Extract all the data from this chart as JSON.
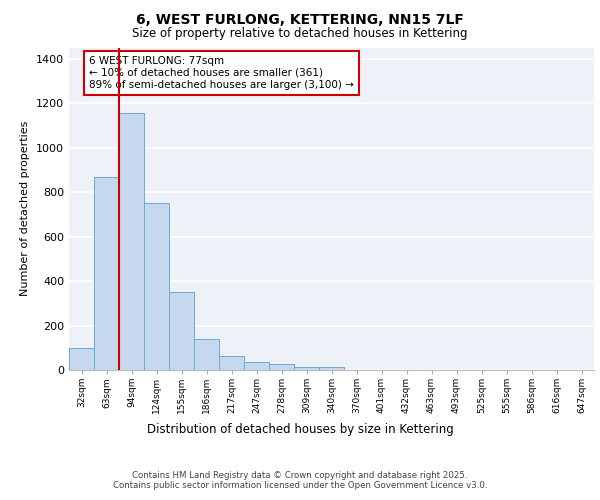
{
  "title_line1": "6, WEST FURLONG, KETTERING, NN15 7LF",
  "title_line2": "Size of property relative to detached houses in Kettering",
  "xlabel": "Distribution of detached houses by size in Kettering",
  "ylabel": "Number of detached properties",
  "categories": [
    "32sqm",
    "63sqm",
    "94sqm",
    "124sqm",
    "155sqm",
    "186sqm",
    "217sqm",
    "247sqm",
    "278sqm",
    "309sqm",
    "340sqm",
    "370sqm",
    "401sqm",
    "432sqm",
    "463sqm",
    "493sqm",
    "525sqm",
    "555sqm",
    "586sqm",
    "616sqm",
    "647sqm"
  ],
  "values": [
    100,
    870,
    1155,
    750,
    350,
    140,
    65,
    35,
    25,
    15,
    12,
    0,
    0,
    0,
    0,
    0,
    0,
    0,
    0,
    0,
    0
  ],
  "bar_color": "#c5d8ed",
  "bar_edge_color": "#6aaad4",
  "property_line_x": 1.5,
  "annotation_text": "6 WEST FURLONG: 77sqm\n← 10% of detached houses are smaller (361)\n89% of semi-detached houses are larger (3,100) →",
  "annotation_box_color": "#ffffff",
  "annotation_box_edge_color": "#cc0000",
  "vline_color": "#cc0000",
  "background_color": "#eef2f8",
  "grid_color": "#ffffff",
  "ylim": [
    0,
    1450
  ],
  "yticks": [
    0,
    200,
    400,
    600,
    800,
    1000,
    1200,
    1400
  ],
  "footer_line1": "Contains HM Land Registry data © Crown copyright and database right 2025.",
  "footer_line2": "Contains public sector information licensed under the Open Government Licence v3.0."
}
